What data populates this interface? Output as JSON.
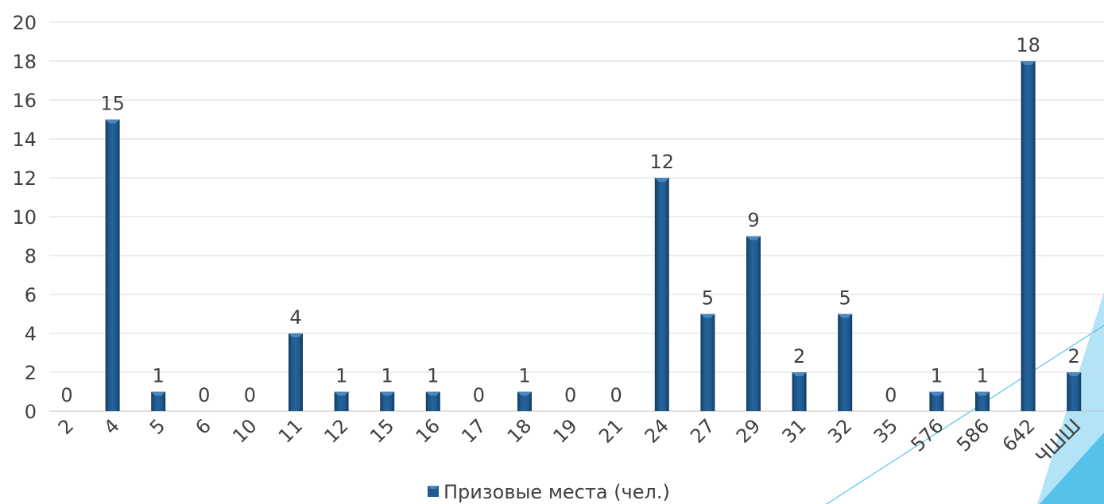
{
  "chart_data": {
    "type": "bar",
    "categories": [
      "2",
      "4",
      "5",
      "6",
      "10",
      "11",
      "12",
      "15",
      "16",
      "17",
      "18",
      "19",
      "21",
      "24",
      "27",
      "29",
      "31",
      "32",
      "35",
      "576",
      "586",
      "642",
      "ЧШШ"
    ],
    "series": [
      {
        "name": "Призовые места (чел.)",
        "values": [
          0,
          15,
          1,
          0,
          0,
          4,
          1,
          1,
          1,
          0,
          1,
          0,
          0,
          12,
          5,
          9,
          2,
          5,
          0,
          1,
          1,
          18,
          2
        ]
      }
    ],
    "ylim": [
      0,
      20
    ],
    "yticks": [
      0,
      2,
      4,
      6,
      8,
      10,
      12,
      14,
      16,
      18,
      20
    ],
    "grid": true,
    "legend_position": "bottom",
    "data_labels": true,
    "colors": {
      "bar_fill": "#1f5a8e",
      "bar_light": "#4a86c0",
      "bar_dark": "#123a5e",
      "grid": "#d9d9d9",
      "text": "#404040",
      "decor_triangle": "#56c2ea",
      "decor_line": "#56c2ea"
    }
  }
}
